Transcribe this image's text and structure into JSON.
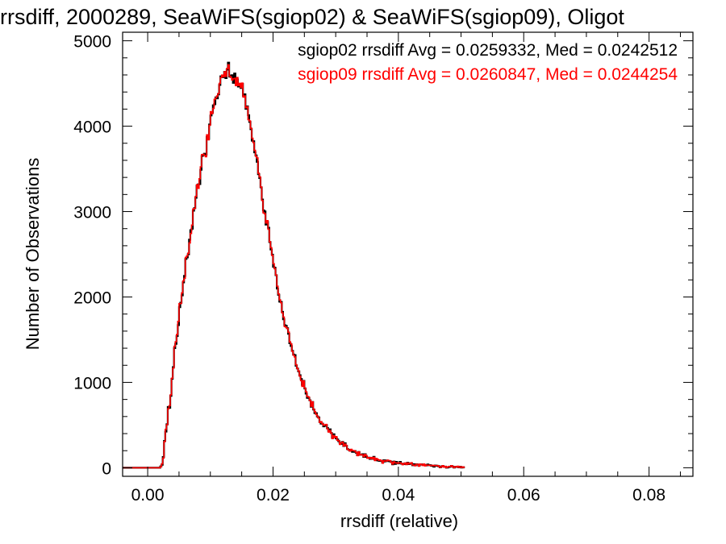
{
  "chart_data": {
    "type": "histogram",
    "title": "rrsdiff, 2000289, SeaWiFS(sgiop02) & SeaWiFS(sgiop09), Oligot",
    "xlabel": "rrsdiff (relative)",
    "ylabel": "Number of Observations",
    "xlim": [
      -0.004,
      0.087
    ],
    "ylim": [
      -100,
      5100
    ],
    "xticks": [
      0.0,
      0.02,
      0.04,
      0.06,
      0.08
    ],
    "xtick_labels": [
      "0.00",
      "0.02",
      "0.04",
      "0.06",
      "0.08"
    ],
    "yticks": [
      0,
      1000,
      2000,
      3000,
      4000,
      5000
    ],
    "ytick_labels": [
      "0",
      "1000",
      "2000",
      "3000",
      "4000",
      "5000"
    ],
    "grid": false,
    "legend_position": "top-right",
    "bin_start": -0.004,
    "bin_width": 0.0002,
    "series": [
      {
        "name": "sgiop02",
        "color": "#000000",
        "annotation": "sgiop02 rrsdiff Avg = 0.0259332, Med = 0.0242512",
        "values": [
          0,
          0,
          0,
          0,
          0,
          0,
          0,
          0,
          0,
          0,
          0,
          0,
          0,
          0,
          0,
          0,
          0,
          0,
          0,
          0,
          0,
          0,
          0,
          0,
          0,
          0,
          0,
          0,
          0,
          0,
          16,
          35,
          125,
          314,
          423,
          509,
          712,
          702,
          842,
          1042,
          1178,
          1402,
          1451,
          1542,
          1671,
          1881,
          1933,
          2019,
          2171,
          2246,
          2445,
          2463,
          2500,
          2671,
          2782,
          2799,
          3010,
          3040,
          3162,
          3303,
          3318,
          3322,
          3489,
          3651,
          3662,
          3678,
          3665,
          3874,
          3851,
          4020,
          4125,
          4159,
          4244,
          4258,
          4337,
          4326,
          4372,
          4483,
          4583,
          4578,
          4574,
          4636,
          4563,
          4662,
          4744,
          4581,
          4593,
          4596,
          4508,
          4617,
          4502,
          4547,
          4464,
          4479,
          4447,
          4495,
          4357,
          4374,
          4203,
          4232,
          4128,
          4050,
          3965,
          3830,
          3824,
          3694,
          3658,
          3583,
          3438,
          3393,
          3284,
          3141,
          3013,
          3002,
          2848,
          2878,
          2810,
          2643,
          2556,
          2496,
          2353,
          2342,
          2255,
          2099,
          2026,
          1945,
          1942,
          1826,
          1739,
          1669,
          1661,
          1634,
          1569,
          1458,
          1426,
          1369,
          1325,
          1319,
          1195,
          1163,
          1129,
          1083,
          1040,
          971,
          1017,
          929,
          868,
          819,
          817,
          790,
          715,
          770,
          682,
          641,
          639,
          601,
          589,
          537,
          517,
          516,
          485,
          493,
          499,
          464,
          433,
          450,
          407,
          352,
          392,
          360,
          345,
          331,
          311,
          292,
          280,
          303,
          255,
          287,
          258,
          219,
          211,
          201,
          199,
          187,
          187,
          195,
          176,
          148,
          184,
          152,
          152,
          158,
          128,
          158,
          127,
          119,
          118,
          104,
          111,
          104,
          128,
          96,
          97,
          86,
          83,
          80,
          80,
          64,
          88,
          74,
          85,
          82,
          77,
          75,
          66,
          40,
          73,
          45,
          69,
          51,
          52,
          69,
          48,
          47,
          44,
          51,
          41,
          60,
          42,
          48,
          49,
          29,
          42,
          28,
          41,
          38,
          24,
          38,
          39,
          39,
          35,
          30,
          28,
          38,
          31,
          30,
          24,
          21,
          13,
          26,
          24,
          21,
          17,
          5,
          14,
          21,
          14,
          13,
          1,
          4,
          9,
          13,
          22,
          13,
          3,
          10,
          12,
          9,
          5,
          12,
          3,
          4,
          6
        ]
      },
      {
        "name": "sgiop09",
        "color": "#ff0000",
        "annotation": "sgiop09 rrsdiff Avg = 0.0260847, Med = 0.0244254",
        "values": [
          0,
          0,
          0,
          0,
          0,
          0,
          0,
          0,
          0,
          0,
          0,
          0,
          0,
          0,
          0,
          0,
          0,
          0,
          0,
          0,
          0,
          0,
          0,
          0,
          0,
          0,
          0,
          0,
          0,
          0,
          12,
          46,
          113,
          306,
          451,
          504,
          691,
          727,
          854,
          1049,
          1167,
          1422,
          1476,
          1560,
          1714,
          1923,
          1924,
          2048,
          2188,
          2218,
          2463,
          2481,
          2512,
          2633,
          2744,
          2842,
          3030,
          3036,
          3178,
          3315,
          3272,
          3384,
          3524,
          3667,
          3671,
          3656,
          3643,
          3899,
          3841,
          4010,
          4170,
          4147,
          4208,
          4314,
          4332,
          4354,
          4382,
          4501,
          4570,
          4598,
          4580,
          4637,
          4584,
          4676,
          4719,
          4586,
          4572,
          4541,
          4555,
          4560,
          4475,
          4570,
          4476,
          4501,
          4453,
          4504,
          4341,
          4354,
          4216,
          4226,
          4076,
          4061,
          3976,
          3859,
          3807,
          3717,
          3648,
          3628,
          3449,
          3407,
          3287,
          3130,
          2985,
          2974,
          2866,
          2893,
          2793,
          2647,
          2577,
          2486,
          2389,
          2331,
          2257,
          2126,
          2036,
          1966,
          1933,
          1814,
          1765,
          1654,
          1647,
          1630,
          1588,
          1474,
          1450,
          1364,
          1319,
          1297,
          1206,
          1163,
          1133,
          1073,
          1020,
          953,
          1017,
          932,
          889,
          835,
          829,
          789,
          720,
          771,
          686,
          656,
          626,
          603,
          582,
          531,
          539,
          515,
          497,
          502,
          507,
          456,
          418,
          436,
          407,
          342,
          377,
          355,
          364,
          322,
          317,
          273,
          291,
          301,
          256,
          277,
          262,
          219,
          208,
          197,
          216,
          202,
          200,
          195,
          179,
          142,
          186,
          150,
          154,
          150,
          130,
          155,
          142,
          112,
          119,
          109,
          120,
          104,
          121,
          85,
          109,
          99,
          88,
          92,
          82,
          54,
          82,
          79,
          80,
          89,
          84,
          82,
          62,
          43,
          69,
          58,
          56,
          53,
          57,
          58,
          50,
          36,
          47,
          55,
          39,
          56,
          45,
          50,
          59,
          33,
          31,
          23,
          40,
          39,
          19,
          43,
          38,
          27,
          44,
          22,
          32,
          31,
          30,
          25,
          27,
          28,
          23,
          26,
          25,
          26,
          14,
          5,
          12,
          24,
          8,
          15,
          3,
          9,
          15,
          15,
          25,
          12,
          3,
          13,
          10,
          18,
          6,
          12,
          4,
          10,
          4
        ]
      }
    ]
  }
}
